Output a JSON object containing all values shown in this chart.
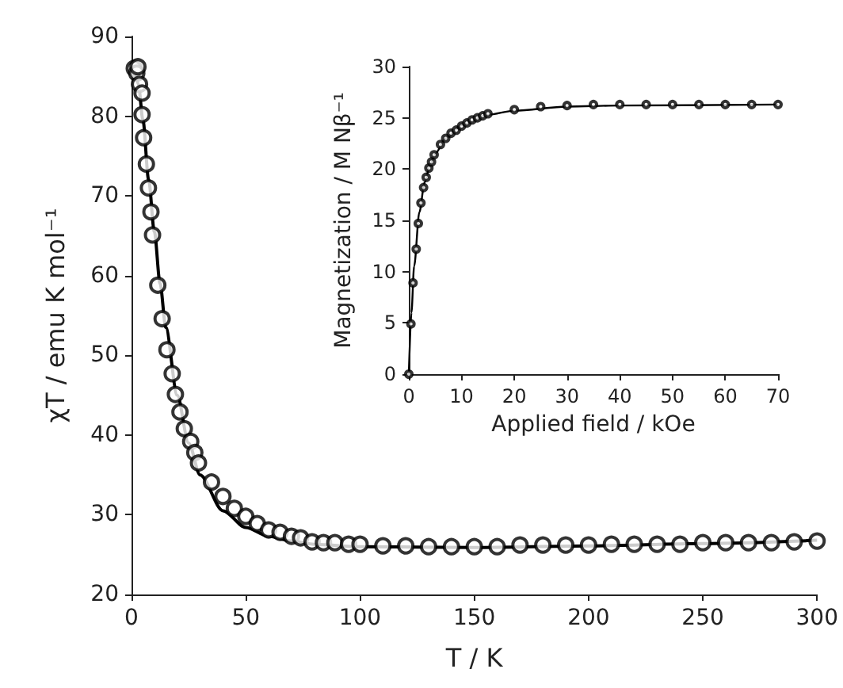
{
  "chart_data": [
    {
      "type": "scatter",
      "xlabel": "T / K",
      "ylabel": "χT / emu K mol⁻¹",
      "xlim": [
        0,
        300
      ],
      "xticks": [
        0,
        50,
        100,
        150,
        200,
        250,
        300
      ],
      "ylim": [
        20,
        90
      ],
      "yticks": [
        20,
        30,
        40,
        50,
        60,
        70,
        80,
        90
      ],
      "grid": false,
      "series": [
        {
          "marker": "circle",
          "color": "#000000",
          "x": [
            1.2,
            2.3,
            2.8,
            3.5,
            4.6,
            4.6,
            5.3,
            6.5,
            7.4,
            8.5,
            9.2,
            11.5,
            13.4,
            15.5,
            17.8,
            19.2,
            21.2,
            23.1,
            25.9,
            27.7,
            29.3,
            35,
            40,
            45,
            50,
            55,
            60,
            65,
            70,
            74,
            79,
            84,
            89,
            95,
            100,
            110,
            120,
            130,
            140,
            150,
            160,
            170,
            180,
            190,
            200,
            210,
            220,
            230,
            240,
            250,
            260,
            270,
            280,
            290,
            300
          ],
          "values": [
            86,
            85.4,
            86.2,
            84,
            82.9,
            80.2,
            77.3,
            74,
            71,
            68,
            65.1,
            58.8,
            54.6,
            50.7,
            47.7,
            45.1,
            42.9,
            40.8,
            39.2,
            37.8,
            36.5,
            34.1,
            32.3,
            30.8,
            29.8,
            28.9,
            28.1,
            27.8,
            27.3,
            27.1,
            26.6,
            26.5,
            26.5,
            26.3,
            26.3,
            26.1,
            26.1,
            26,
            26,
            26,
            26,
            26.2,
            26.2,
            26.2,
            26.2,
            26.3,
            26.3,
            26.3,
            26.3,
            26.5,
            26.5,
            26.5,
            26.5,
            26.6,
            26.7
          ]
        },
        {
          "type": "line",
          "color": "#000000",
          "x": [
            1,
            3,
            5,
            7.5,
            10,
            12.5,
            15,
            20,
            25,
            30,
            40,
            50,
            60,
            70,
            80,
            100,
            150,
            200,
            250,
            300
          ],
          "values": [
            86.5,
            84,
            79.5,
            72,
            65.5,
            59,
            53.5,
            45,
            39,
            35,
            30.5,
            28.4,
            27.3,
            26.7,
            26.3,
            26,
            25.9,
            26.1,
            26.4,
            26.8
          ]
        }
      ]
    },
    {
      "type": "scatter",
      "xlabel": "Applied field / kOe",
      "ylabel": "Magnetization / M Nβ⁻¹",
      "xlim": [
        0,
        70
      ],
      "xticks": [
        0,
        10,
        20,
        30,
        40,
        50,
        60,
        70
      ],
      "ylim": [
        0,
        30
      ],
      "yticks": [
        0,
        5,
        10,
        15,
        20,
        25,
        30
      ],
      "grid": false,
      "series": [
        {
          "marker": "circle",
          "color": "#000000",
          "x": [
            0,
            0.4,
            0.8,
            1.4,
            1.8,
            2.3,
            2.8,
            3.3,
            3.8,
            4.3,
            4.8,
            6,
            7,
            8,
            9,
            10,
            11,
            12,
            13,
            14,
            15,
            20,
            25,
            30,
            35,
            40,
            45,
            50,
            55,
            60,
            65,
            70
          ],
          "values": [
            0,
            4.9,
            8.9,
            12.2,
            14.7,
            16.7,
            18.2,
            19.2,
            20.1,
            20.7,
            21.4,
            22.4,
            23,
            23.5,
            23.8,
            24.2,
            24.5,
            24.8,
            25,
            25.2,
            25.4,
            25.8,
            26.1,
            26.2,
            26.3,
            26.3,
            26.3,
            26.3,
            26.3,
            26.3,
            26.3,
            26.3
          ]
        },
        {
          "type": "line",
          "color": "#000000",
          "x": [
            0,
            0.5,
            1,
            2,
            3,
            4,
            5,
            7,
            10,
            15,
            20,
            30,
            40,
            70
          ],
          "values": [
            0,
            6,
            10.5,
            15.8,
            18.7,
            20.3,
            21.5,
            23,
            24.3,
            25.3,
            25.7,
            26.1,
            26.2,
            26.3
          ]
        }
      ]
    }
  ]
}
